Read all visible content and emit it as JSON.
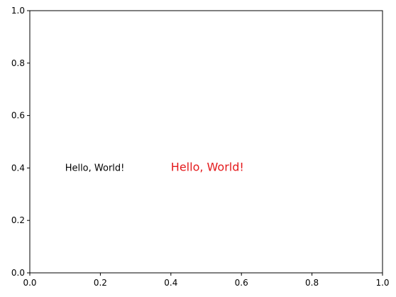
{
  "chart_data": {
    "type": "scatter",
    "title": "",
    "xlabel": "",
    "ylabel": "",
    "xlim": [
      0,
      1
    ],
    "ylim": [
      0,
      1
    ],
    "xticks": [
      {
        "value": 0.0,
        "label": "0.0"
      },
      {
        "value": 0.2,
        "label": "0.2"
      },
      {
        "value": 0.4,
        "label": "0.4"
      },
      {
        "value": 0.6,
        "label": "0.6"
      },
      {
        "value": 0.8,
        "label": "0.8"
      },
      {
        "value": 1.0,
        "label": "1.0"
      }
    ],
    "yticks": [
      {
        "value": 0.0,
        "label": "0.0"
      },
      {
        "value": 0.2,
        "label": "0.2"
      },
      {
        "value": 0.4,
        "label": "0.4"
      },
      {
        "value": 0.6,
        "label": "0.6"
      },
      {
        "value": 0.8,
        "label": "0.8"
      },
      {
        "value": 1.0,
        "label": "1.0"
      }
    ],
    "grid": false,
    "series": [],
    "annotations": [
      {
        "text": "Hello, World!",
        "x": 0.1,
        "y": 0.4,
        "color": "#000000",
        "size": "normal"
      },
      {
        "text": "Hello, World!",
        "x": 0.4,
        "y": 0.4,
        "color": "#e41a1c",
        "size": "large"
      }
    ]
  }
}
